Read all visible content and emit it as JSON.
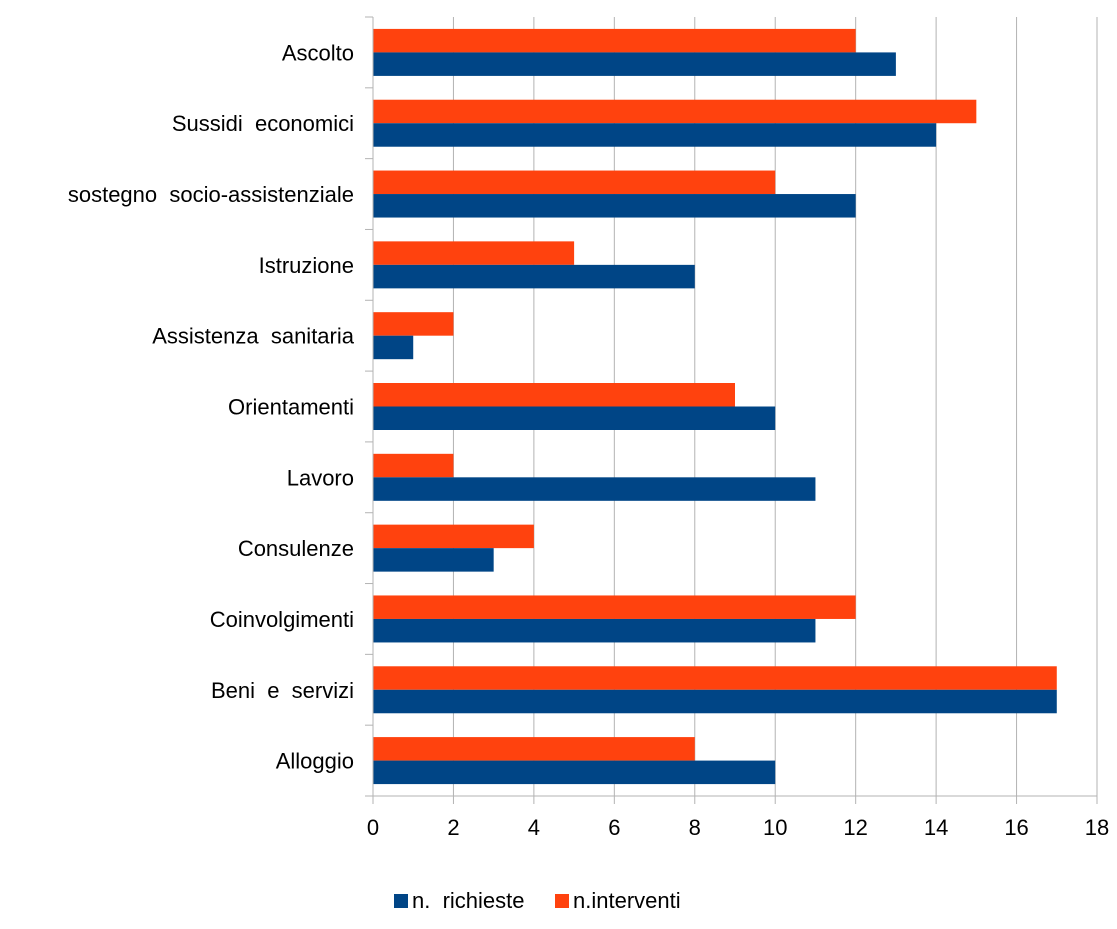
{
  "chart_data": {
    "type": "bar",
    "orientation": "horizontal",
    "categories": [
      "Ascolto",
      "Sussidi  economici",
      "sostegno  socio-assistenziale",
      "Istruzione",
      "Assistenza  sanitaria",
      "Orientamenti",
      "Lavoro",
      "Consulenze",
      "Coinvolgimenti",
      "Beni  e  servizi",
      "Alloggio"
    ],
    "series": [
      {
        "name": "n.  richieste",
        "color": "#004586",
        "values": [
          13,
          14,
          12,
          8,
          1,
          10,
          11,
          3,
          11,
          17,
          10
        ]
      },
      {
        "name": "n.interventi",
        "color": "#ff420e",
        "values": [
          12,
          15,
          10,
          5,
          2,
          9,
          2,
          4,
          12,
          17,
          8
        ]
      }
    ],
    "xlim": [
      0,
      18
    ],
    "xticks": [
      "0",
      "2",
      "4",
      "6",
      "8",
      "10",
      "12",
      "14",
      "16",
      "18"
    ],
    "grid": "vertical",
    "legend_position": "bottom"
  }
}
